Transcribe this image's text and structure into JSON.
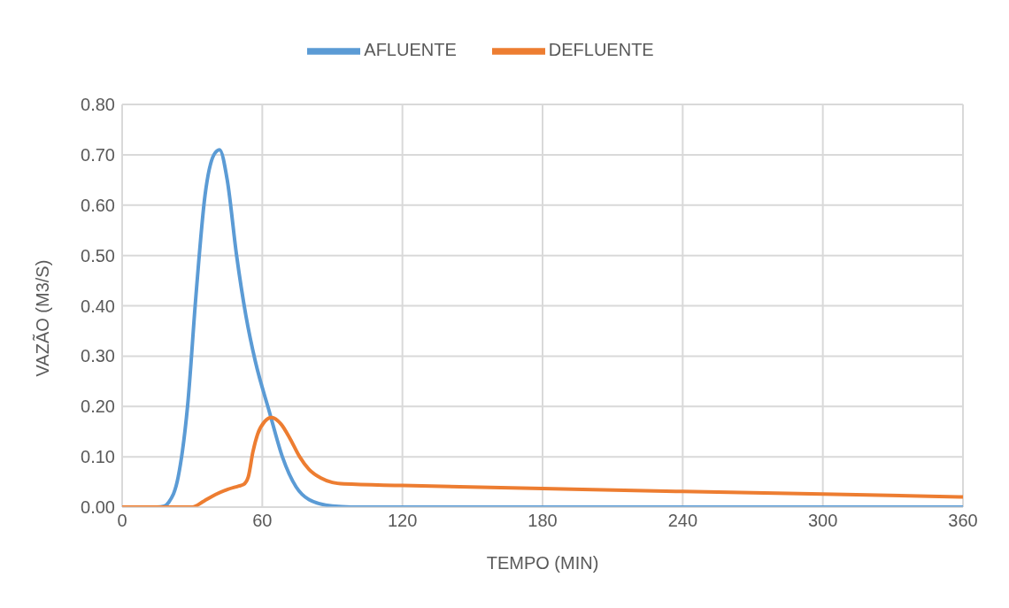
{
  "chart_data": {
    "type": "line",
    "xlabel": "TEMPO (MIN)",
    "ylabel": "VAZÃO (M3/S)",
    "xlim": [
      0,
      360
    ],
    "xticks": [
      0,
      60,
      120,
      180,
      240,
      300,
      360
    ],
    "ylim": [
      0,
      0.8
    ],
    "yticks": [
      {
        "value": 0,
        "label": "0.00"
      },
      {
        "value": 0.1,
        "label": "0.10"
      },
      {
        "value": 0.2,
        "label": "0.20"
      },
      {
        "value": 0.3,
        "label": "0.30"
      },
      {
        "value": 0.4,
        "label": "0.40"
      },
      {
        "value": 0.5,
        "label": "0.50"
      },
      {
        "value": 0.6,
        "label": "0.60"
      },
      {
        "value": 0.7,
        "label": "0.70"
      },
      {
        "value": 0.8,
        "label": "0.80"
      }
    ],
    "grid": true,
    "legend": "top",
    "marker": "none",
    "line_style": "solid",
    "series": [
      {
        "name": "AFLUENTE",
        "color": "#5b9bd5",
        "x": [
          0,
          15,
          18,
          20,
          24,
          28,
          31.6,
          35.5,
          39.3,
          41.7,
          45,
          49,
          53,
          57,
          63,
          68.6,
          74.5,
          80,
          90,
          98,
          120,
          180,
          240,
          300,
          360
        ],
        "values": [
          0,
          0,
          0.002,
          0.01,
          0.06,
          0.2,
          0.42,
          0.62,
          0.7,
          0.71,
          0.65,
          0.5,
          0.38,
          0.29,
          0.19,
          0.1,
          0.04,
          0.015,
          0.002,
          0,
          0,
          0,
          0,
          0,
          0
        ]
      },
      {
        "name": "DEFLUENTE",
        "color": "#ed7d31",
        "x": [
          0,
          30,
          35,
          40,
          45,
          50,
          52,
          54,
          56,
          58,
          61,
          64,
          68,
          72,
          76,
          80,
          85,
          90,
          95,
          120,
          180,
          240,
          300,
          360
        ],
        "values": [
          0,
          0,
          0.012,
          0.025,
          0.035,
          0.042,
          0.045,
          0.06,
          0.11,
          0.145,
          0.17,
          0.178,
          0.165,
          0.135,
          0.1,
          0.075,
          0.058,
          0.049,
          0.046,
          0.043,
          0.037,
          0.031,
          0.026,
          0.02
        ]
      }
    ]
  }
}
